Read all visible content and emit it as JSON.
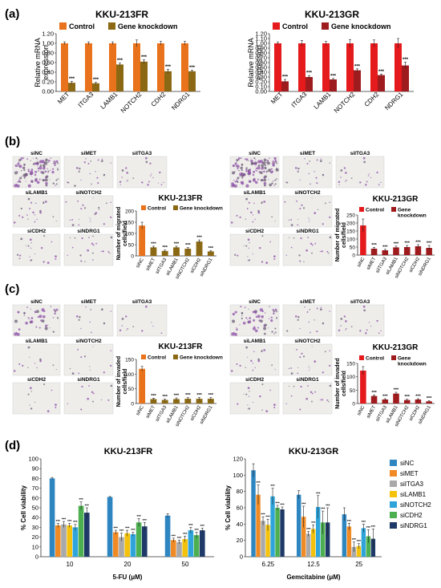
{
  "panels": {
    "a": "(a)",
    "b": "(b)",
    "c": "(c)",
    "d": "(d)"
  },
  "cell_lines": {
    "fr": "KKU-213FR",
    "gr": "KKU-213GR"
  },
  "sig": "***",
  "legend": {
    "control": "Control",
    "kd": "Gene knockdown",
    "kd_line1": "Gene",
    "kd_line2": "knockdown"
  },
  "colors": {
    "fr_control": "#E8731C",
    "fr_kd": "#8B6914",
    "gr_control": "#E41A1C",
    "gr_kd": "#9E1B1E",
    "d_series": [
      "#2E86C1",
      "#F08A24",
      "#A9A9A9",
      "#F4C20D",
      "#2FA4DA",
      "#4CAF50",
      "#1F3A68"
    ]
  },
  "images": {
    "b_fr": [
      "siNC",
      "siMET",
      "siITGA3",
      "siLAMB1",
      "siNOTCH2",
      "siCDH2",
      "siNDRG1"
    ],
    "b_gr": [
      "siNC",
      "siMET",
      "siITGA3",
      "siLAMB1",
      "siNOTCH2",
      "siCDH2",
      "siNDRG1"
    ],
    "c_fr": [
      "siNC",
      "siMET",
      "siITGA3",
      "siLAMB1",
      "siNOTCH2",
      "siCDH2",
      "siNDRG1"
    ],
    "c_gr": [
      "siNC",
      "siMET",
      "siITGA3",
      "siLAMB1",
      "siNOTCH2",
      "siCDH2",
      "siNDRG1"
    ]
  },
  "chart_data": [
    {
      "id": "a_fr",
      "type": "bar",
      "title": "KKU-213FR",
      "ylabel": "Relative mRNA expression",
      "categories": [
        "MET",
        "ITGA3",
        "LAMB1",
        "NOTCH2",
        "CDH2",
        "NDRG1"
      ],
      "ylim": [
        0,
        1.2
      ],
      "yticks": [
        "0.00",
        "0.20",
        "0.40",
        "0.60",
        "0.80",
        "1.00",
        "1.20"
      ],
      "series": [
        {
          "name": "Control",
          "values": [
            1,
            1,
            1,
            1,
            1,
            1
          ],
          "err": [
            0.03,
            0.03,
            0.03,
            0.07,
            0.04,
            0.04
          ]
        },
        {
          "name": "Gene knockdown",
          "values": [
            0.18,
            0.17,
            0.56,
            0.62,
            0.42,
            0.42
          ],
          "err": [
            0.03,
            0.02,
            0.03,
            0.04,
            0.04,
            0.02
          ]
        }
      ]
    },
    {
      "id": "a_gr",
      "type": "bar",
      "title": "KKU-213GR",
      "ylabel": "Relative mRNA expression",
      "categories": [
        "MET",
        "ITGA3",
        "LAMB1",
        "NOTCH2",
        "CDH2",
        "NDRG1"
      ],
      "ylim": [
        0,
        1.2
      ],
      "yticks": [
        "0.00",
        "0.10",
        "0.20",
        "0.30",
        "0.40",
        "0.50",
        "0.60",
        "0.70",
        "0.80",
        "0.90",
        "1.00",
        "1.10",
        "1.20"
      ],
      "series": [
        {
          "name": "Control",
          "values": [
            1,
            1,
            1,
            1,
            1,
            1
          ],
          "err": [
            0.03,
            0.06,
            0.04,
            0.08,
            0.07,
            0.1
          ]
        },
        {
          "name": "Gene knockdown",
          "values": [
            0.21,
            0.3,
            0.25,
            0.44,
            0.34,
            0.54
          ],
          "err": [
            0.04,
            0.03,
            0.02,
            0.03,
            0.02,
            0.07
          ]
        }
      ]
    },
    {
      "id": "b_fr",
      "type": "bar",
      "title": "KKU-213FR",
      "ylabel": "Number of migrated cells/field",
      "categories": [
        "siNC",
        "siMET",
        "siITGA3",
        "siLAMB1",
        "siNOTCH2",
        "siCDH2",
        "siNDRG1"
      ],
      "ylim": [
        0,
        200
      ],
      "yticks": [
        "0",
        "50",
        "100",
        "150",
        "200"
      ],
      "values": [
        135,
        38,
        22,
        38,
        32,
        64,
        20
      ],
      "err": [
        15,
        5,
        4,
        5,
        5,
        7,
        3
      ]
    },
    {
      "id": "b_gr",
      "type": "bar",
      "title": "KKU-213GR",
      "ylabel": "Number of migrated cells/field",
      "categories": [
        "siNC",
        "siMET",
        "siITGA3",
        "siLAMB1",
        "siNOTCH2",
        "siCDH2",
        "siNDRG1"
      ],
      "ylim": [
        0,
        250
      ],
      "yticks": [
        "0",
        "50",
        "100",
        "150",
        "200",
        "250"
      ],
      "values": [
        185,
        40,
        30,
        48,
        50,
        55,
        45
      ],
      "err": [
        40,
        8,
        6,
        8,
        10,
        10,
        15
      ]
    },
    {
      "id": "c_fr",
      "type": "bar",
      "title": "KKU-213FR",
      "ylabel": "Number of invaded cells/field",
      "categories": [
        "siNC",
        "siMET",
        "siITGA3",
        "siLAMB1",
        "siNOTCH2",
        "siCDH2",
        "siNDRG1"
      ],
      "ylim": [
        0,
        150
      ],
      "yticks": [
        "0",
        "50",
        "100",
        "150"
      ],
      "values": [
        118,
        15,
        12,
        15,
        16,
        16,
        16
      ],
      "err": [
        8,
        3,
        3,
        4,
        4,
        4,
        4
      ]
    },
    {
      "id": "c_gr",
      "type": "bar",
      "title": "KKU-213GR",
      "ylabel": "Number of invaded cells/field",
      "categories": [
        "siNC",
        "siMET",
        "siITGA3",
        "siLAMB1",
        "siNOTCH2",
        "siCDH2",
        "siNDRG1"
      ],
      "ylim": [
        0,
        150
      ],
      "yticks": [
        "0",
        "50",
        "100",
        "150"
      ],
      "values": [
        123,
        28,
        15,
        37,
        13,
        15,
        8
      ],
      "err": [
        15,
        4,
        3,
        5,
        3,
        3,
        2
      ]
    },
    {
      "id": "d_fr",
      "type": "bar",
      "title": "KKU-213FR",
      "xlabel": "5-FU (μM)",
      "ylabel": "% Cell viability",
      "categories": [
        "10",
        "20",
        "50"
      ],
      "ylim": [
        0,
        100
      ],
      "yticks": [
        "0",
        "10",
        "20",
        "30",
        "40",
        "50",
        "60",
        "70",
        "80",
        "90",
        "100"
      ],
      "series": [
        {
          "name": "siNC",
          "values": [
            80,
            61,
            42
          ],
          "err": [
            1,
            0.5,
            2
          ]
        },
        {
          "name": "siMET",
          "values": [
            32,
            25,
            17
          ],
          "err": [
            2,
            2,
            2
          ]
        },
        {
          "name": "siITGA3",
          "values": [
            33,
            20,
            15
          ],
          "err": [
            3,
            4,
            2
          ]
        },
        {
          "name": "siLAMB1",
          "values": [
            32,
            24,
            18
          ],
          "err": [
            2,
            3,
            3
          ]
        },
        {
          "name": "siNOTCH2",
          "values": [
            30,
            23,
            27
          ],
          "err": [
            3,
            2,
            3
          ]
        },
        {
          "name": "siCDH2",
          "values": [
            52,
            35,
            22
          ],
          "err": [
            4,
            4,
            3
          ]
        },
        {
          "name": "siNDRG1",
          "values": [
            45,
            31,
            27
          ],
          "err": [
            5,
            4,
            2
          ]
        }
      ]
    },
    {
      "id": "d_gr",
      "type": "bar",
      "title": "KKU-213GR",
      "xlabel": "Gemcitabine (μM)",
      "ylabel": "% Cell viability",
      "categories": [
        "6.25",
        "12.5",
        "25"
      ],
      "ylim": [
        0,
        120
      ],
      "yticks": [
        "0",
        "20",
        "40",
        "60",
        "80",
        "100",
        "120"
      ],
      "series": [
        {
          "name": "siNC",
          "values": [
            106,
            76,
            52
          ],
          "err": [
            8,
            5,
            8
          ]
        },
        {
          "name": "siMET",
          "values": [
            76,
            49,
            37
          ],
          "err": [
            12,
            13,
            4
          ]
        },
        {
          "name": "siITGA3",
          "values": [
            44,
            28,
            12
          ],
          "err": [
            5,
            3,
            6
          ]
        },
        {
          "name": "siLAMB1",
          "values": [
            39,
            34,
            13
          ],
          "err": [
            7,
            5,
            3
          ]
        },
        {
          "name": "siNOTCH2",
          "values": [
            74,
            61,
            35
          ],
          "err": [
            10,
            14,
            5
          ]
        },
        {
          "name": "siCDH2",
          "values": [
            60,
            42,
            25
          ],
          "err": [
            3,
            14,
            8
          ]
        },
        {
          "name": "siNDRG1",
          "values": [
            58,
            42,
            22
          ],
          "err": [
            3,
            18,
            12
          ]
        }
      ]
    }
  ]
}
